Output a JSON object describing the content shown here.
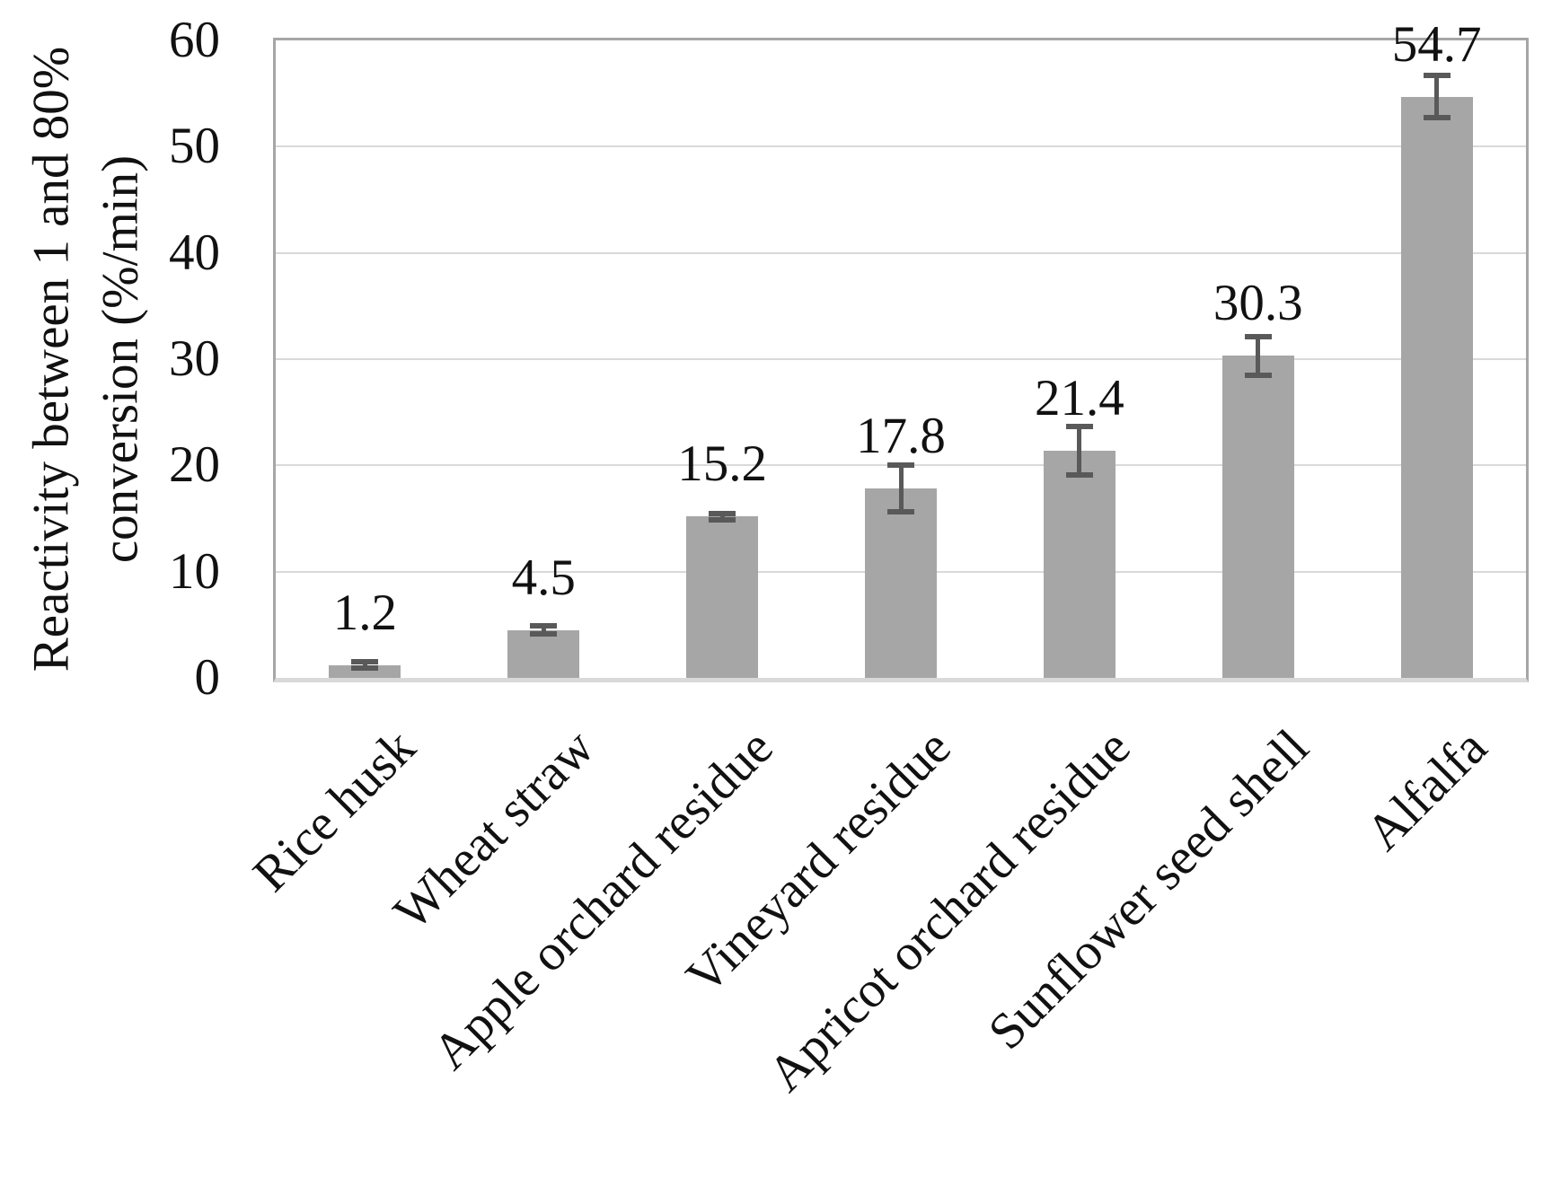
{
  "chart_data": {
    "type": "bar",
    "title": "",
    "categories": [
      "Rice husk",
      "Wheat straw",
      "Apple orchard residue",
      "Vineyard residue",
      "Apricot orchard residue",
      "Sunflower seed shell",
      "Alfalfa"
    ],
    "values": [
      1.2,
      4.5,
      15.2,
      17.8,
      21.4,
      30.3,
      54.7
    ],
    "data_labels": [
      "1.2",
      "4.5",
      "15.2",
      "17.8",
      "21.4",
      "30.3",
      "54.7"
    ],
    "error_bars": [
      0.3,
      0.4,
      0.3,
      2.2,
      2.3,
      1.8,
      2.0
    ],
    "ylabel": "Reactivity between 1 and 80% conversion (%/min)",
    "ylabel_line1": "Reactivity between 1 and 80%",
    "ylabel_line2": "conversion (%/min)",
    "xlabel": "",
    "ylim": [
      0,
      60
    ],
    "yticks": [
      0,
      10,
      20,
      30,
      40,
      50,
      60
    ],
    "grid": "horizontal",
    "legend": "none",
    "colors": {
      "bar": "#a6a6a6",
      "error_bar": "#595959",
      "gridline": "#d9d9d9",
      "plot_border": "#a6a6a6",
      "axis_line": "#d9d9d9",
      "text": "#111111",
      "background": "#ffffff"
    }
  }
}
